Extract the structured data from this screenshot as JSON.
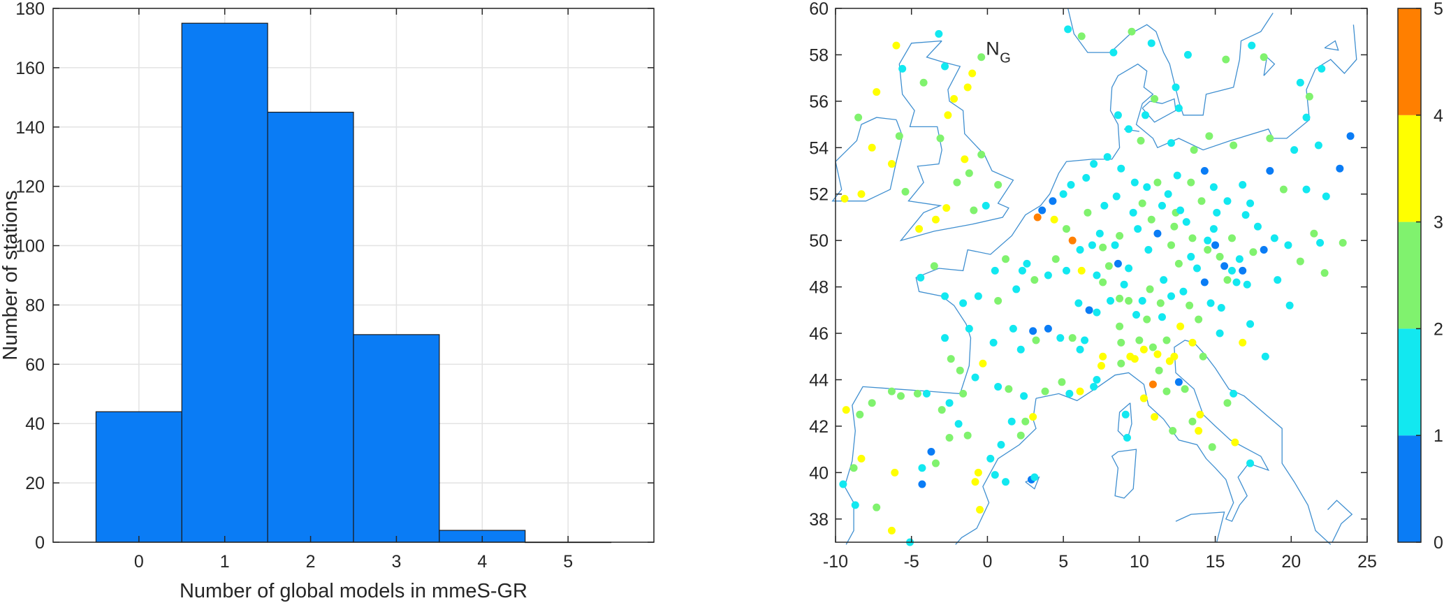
{
  "chart_data": [
    {
      "type": "bar",
      "categories": [
        "0",
        "1",
        "2",
        "3",
        "4",
        "5"
      ],
      "values": [
        44,
        175,
        145,
        70,
        4,
        0
      ],
      "xlabel": "Number of  global models in mmeS-GR",
      "ylabel": "Number of stations",
      "ylim": [
        0,
        180
      ],
      "xlim": [
        -1,
        6
      ],
      "yticks": [
        "0",
        "20",
        "40",
        "60",
        "80",
        "100",
        "120",
        "140",
        "160",
        "180"
      ],
      "xticks": [
        "0",
        "1",
        "2",
        "3",
        "4",
        "5"
      ],
      "grid": true,
      "bar_color": "#0a7cf5"
    },
    {
      "type": "scatter",
      "annotation": {
        "main": "N",
        "sub": "G"
      },
      "xlim": [
        -10,
        25
      ],
      "ylim": [
        37,
        60
      ],
      "xticks": [
        "-10",
        "-5",
        "0",
        "5",
        "10",
        "15",
        "20",
        "25"
      ],
      "yticks": [
        "38",
        "40",
        "42",
        "44",
        "46",
        "48",
        "50",
        "52",
        "54",
        "56",
        "58",
        "60"
      ],
      "colorbar": {
        "range": [
          0,
          5
        ],
        "ticks": [
          "0",
          "1",
          "2",
          "3",
          "4",
          "5"
        ],
        "colors": [
          "#0a7cf5",
          "#12e8f0",
          "#80f26e",
          "#ffff00",
          "#ff7f00"
        ]
      },
      "coastline_color": "#3f8fd0",
      "points": [
        [
          -5.1,
          37.0,
          1
        ],
        [
          -9.5,
          39.5,
          1
        ],
        [
          -9.3,
          42.7,
          3
        ],
        [
          -8.4,
          42.5,
          2
        ],
        [
          -8.8,
          40.2,
          2
        ],
        [
          -8.3,
          40.6,
          3
        ],
        [
          -8.7,
          38.6,
          1
        ],
        [
          -7.3,
          38.5,
          2
        ],
        [
          -6.3,
          37.5,
          3
        ],
        [
          -6.1,
          40.0,
          3
        ],
        [
          -4.3,
          39.5,
          0
        ],
        [
          -4.3,
          40.2,
          1
        ],
        [
          -3.7,
          40.9,
          0
        ],
        [
          -3.4,
          40.4,
          2
        ],
        [
          -3.0,
          42.7,
          2
        ],
        [
          -2.5,
          41.5,
          2
        ],
        [
          -1.9,
          42.1,
          1
        ],
        [
          -1.3,
          41.6,
          2
        ],
        [
          -0.8,
          39.6,
          3
        ],
        [
          -0.6,
          40.0,
          3
        ],
        [
          -0.5,
          38.4,
          3
        ],
        [
          0.2,
          40.6,
          1
        ],
        [
          0.5,
          39.9,
          1
        ],
        [
          0.9,
          41.2,
          1
        ],
        [
          1.6,
          42.2,
          1
        ],
        [
          2.2,
          41.6,
          2
        ],
        [
          2.5,
          42.2,
          2
        ],
        [
          3.0,
          42.4,
          3
        ],
        [
          1.2,
          39.6,
          1
        ],
        [
          2.9,
          39.7,
          0
        ],
        [
          3.1,
          39.8,
          1
        ],
        [
          -4.0,
          43.4,
          1
        ],
        [
          -4.6,
          43.4,
          2
        ],
        [
          -5.7,
          43.3,
          2
        ],
        [
          -6.3,
          43.5,
          2
        ],
        [
          -7.6,
          43.0,
          2
        ],
        [
          -2.5,
          43.0,
          1
        ],
        [
          -1.6,
          43.4,
          2
        ],
        [
          -0.3,
          44.7,
          3
        ],
        [
          0.7,
          43.7,
          1
        ],
        [
          1.4,
          43.6,
          2
        ],
        [
          2.4,
          43.3,
          1
        ],
        [
          3.8,
          43.5,
          2
        ],
        [
          4.9,
          43.9,
          2
        ],
        [
          5.4,
          43.4,
          1
        ],
        [
          6.1,
          43.5,
          3
        ],
        [
          7.0,
          43.7,
          1
        ],
        [
          7.5,
          44.6,
          3
        ],
        [
          8.8,
          44.7,
          2
        ],
        [
          9.4,
          45.0,
          3
        ],
        [
          10.3,
          45.3,
          3
        ],
        [
          10.9,
          45.4,
          2
        ],
        [
          11.2,
          45.1,
          3
        ],
        [
          11.8,
          45.7,
          2
        ],
        [
          12.3,
          45.0,
          3
        ],
        [
          12.7,
          46.3,
          3
        ],
        [
          13.5,
          45.6,
          3
        ],
        [
          11.3,
          44.4,
          2
        ],
        [
          10.9,
          43.8,
          4
        ],
        [
          10.3,
          43.2,
          3
        ],
        [
          11.8,
          43.5,
          2
        ],
        [
          12.6,
          43.9,
          0
        ],
        [
          13.5,
          42.2,
          2
        ],
        [
          13.9,
          41.8,
          3
        ],
        [
          11.0,
          42.4,
          3
        ],
        [
          12.2,
          41.8,
          2
        ],
        [
          14.8,
          41.1,
          2
        ],
        [
          16.3,
          41.3,
          3
        ],
        [
          17.3,
          40.4,
          1
        ],
        [
          9.1,
          42.5,
          1
        ],
        [
          9.2,
          41.5,
          1
        ],
        [
          7.2,
          44.0,
          1
        ],
        [
          6.1,
          45.3,
          1
        ],
        [
          5.6,
          45.8,
          2
        ],
        [
          4.8,
          45.8,
          1
        ],
        [
          4.0,
          46.2,
          0
        ],
        [
          3.2,
          45.7,
          2
        ],
        [
          1.7,
          46.2,
          1
        ],
        [
          0.4,
          45.6,
          1
        ],
        [
          -1.2,
          46.2,
          1
        ],
        [
          -1.6,
          47.3,
          1
        ],
        [
          -2.8,
          47.6,
          1
        ],
        [
          -4.4,
          48.4,
          1
        ],
        [
          -3.5,
          48.9,
          2
        ],
        [
          -0.6,
          47.6,
          1
        ],
        [
          0.7,
          47.4,
          2
        ],
        [
          1.9,
          47.9,
          1
        ],
        [
          2.3,
          48.7,
          1
        ],
        [
          2.6,
          49.0,
          1
        ],
        [
          1.2,
          49.2,
          2
        ],
        [
          3.1,
          48.3,
          2
        ],
        [
          4.0,
          48.5,
          1
        ],
        [
          4.5,
          49.2,
          2
        ],
        [
          5.2,
          48.7,
          1
        ],
        [
          6.2,
          48.7,
          3
        ],
        [
          7.2,
          48.5,
          1
        ],
        [
          7.6,
          48.2,
          2
        ],
        [
          6.0,
          47.3,
          1
        ],
        [
          6.7,
          47.0,
          0
        ],
        [
          7.2,
          46.9,
          1
        ],
        [
          8.1,
          47.4,
          1
        ],
        [
          8.7,
          47.5,
          2
        ],
        [
          9.3,
          47.4,
          2
        ],
        [
          9.8,
          46.8,
          1
        ],
        [
          8.7,
          46.3,
          2
        ],
        [
          10.2,
          47.4,
          1
        ],
        [
          11.4,
          47.3,
          2
        ],
        [
          12.1,
          47.6,
          1
        ],
        [
          12.9,
          47.8,
          1
        ],
        [
          13.3,
          47.2,
          2
        ],
        [
          14.3,
          48.2,
          0
        ],
        [
          14.7,
          47.3,
          1
        ],
        [
          15.4,
          47.1,
          1
        ],
        [
          16.4,
          48.2,
          1
        ],
        [
          15.8,
          48.3,
          2
        ],
        [
          16.1,
          48.7,
          1
        ],
        [
          17.1,
          48.1,
          1
        ],
        [
          16.6,
          49.2,
          1
        ],
        [
          17.5,
          49.5,
          2
        ],
        [
          18.2,
          49.6,
          0
        ],
        [
          15.0,
          49.8,
          0
        ],
        [
          14.5,
          50.0,
          1
        ],
        [
          13.5,
          50.1,
          2
        ],
        [
          14.9,
          50.5,
          1
        ],
        [
          13.1,
          50.8,
          1
        ],
        [
          12.4,
          51.2,
          2
        ],
        [
          11.5,
          51.5,
          1
        ],
        [
          10.8,
          50.9,
          2
        ],
        [
          9.9,
          50.5,
          1
        ],
        [
          8.7,
          50.2,
          2
        ],
        [
          8.4,
          49.8,
          1
        ],
        [
          8.6,
          49.0,
          0
        ],
        [
          7.6,
          49.7,
          2
        ],
        [
          6.9,
          49.8,
          1
        ],
        [
          6.1,
          49.6,
          1
        ],
        [
          5.6,
          50.0,
          4
        ],
        [
          5.2,
          50.5,
          2
        ],
        [
          4.4,
          50.9,
          3
        ],
        [
          3.3,
          51.0,
          4
        ],
        [
          3.6,
          51.3,
          0
        ],
        [
          4.3,
          51.7,
          0
        ],
        [
          5.0,
          52.0,
          1
        ],
        [
          5.5,
          52.4,
          1
        ],
        [
          6.5,
          52.7,
          1
        ],
        [
          7.0,
          53.3,
          1
        ],
        [
          7.9,
          53.6,
          1
        ],
        [
          8.8,
          53.1,
          1
        ],
        [
          9.7,
          52.5,
          1
        ],
        [
          10.5,
          52.3,
          1
        ],
        [
          11.2,
          52.5,
          2
        ],
        [
          11.9,
          52.0,
          1
        ],
        [
          12.5,
          52.8,
          1
        ],
        [
          13.4,
          52.5,
          2
        ],
        [
          14.3,
          53.0,
          0
        ],
        [
          13.6,
          53.9,
          2
        ],
        [
          12.1,
          54.2,
          1
        ],
        [
          10.1,
          54.3,
          2
        ],
        [
          9.3,
          54.8,
          1
        ],
        [
          8.6,
          55.4,
          1
        ],
        [
          10.4,
          55.4,
          1
        ],
        [
          12.6,
          55.7,
          1
        ],
        [
          14.6,
          54.5,
          2
        ],
        [
          16.2,
          54.1,
          2
        ],
        [
          18.6,
          54.4,
          2
        ],
        [
          19.5,
          52.2,
          2
        ],
        [
          21.0,
          52.2,
          1
        ],
        [
          17.0,
          51.1,
          1
        ],
        [
          15.1,
          51.2,
          1
        ],
        [
          16.8,
          52.4,
          1
        ],
        [
          18.6,
          53.0,
          0
        ],
        [
          20.2,
          53.9,
          1
        ],
        [
          23.2,
          53.1,
          0
        ],
        [
          23.9,
          54.5,
          0
        ],
        [
          21.9,
          49.9,
          1
        ],
        [
          20.6,
          49.1,
          2
        ],
        [
          19.1,
          48.3,
          1
        ],
        [
          19.9,
          47.2,
          1
        ],
        [
          22.2,
          48.6,
          2
        ],
        [
          23.4,
          49.9,
          2
        ],
        [
          21.5,
          50.3,
          2
        ],
        [
          22.3,
          51.9,
          1
        ],
        [
          21.8,
          54.1,
          1
        ],
        [
          21.0,
          55.3,
          1
        ],
        [
          21.2,
          56.2,
          2
        ],
        [
          20.6,
          56.8,
          1
        ],
        [
          22.0,
          57.4,
          1
        ],
        [
          17.4,
          58.4,
          1
        ],
        [
          13.2,
          58.0,
          1
        ],
        [
          15.7,
          57.8,
          2
        ],
        [
          18.2,
          57.9,
          2
        ],
        [
          12.4,
          56.6,
          1
        ],
        [
          11.0,
          56.1,
          2
        ],
        [
          9.5,
          59.0,
          2
        ],
        [
          10.8,
          58.5,
          1
        ],
        [
          8.3,
          58.1,
          1
        ],
        [
          5.3,
          59.1,
          1
        ],
        [
          6.2,
          58.8,
          2
        ],
        [
          -1.3,
          56.6,
          3
        ],
        [
          -2.2,
          56.1,
          3
        ],
        [
          -2.6,
          55.4,
          3
        ],
        [
          -3.1,
          54.4,
          2
        ],
        [
          -1.5,
          53.5,
          3
        ],
        [
          -0.4,
          53.7,
          2
        ],
        [
          -2.0,
          52.5,
          2
        ],
        [
          -1.2,
          52.9,
          2
        ],
        [
          -0.1,
          51.5,
          1
        ],
        [
          0.7,
          52.4,
          2
        ],
        [
          -0.9,
          51.3,
          2
        ],
        [
          -2.7,
          51.4,
          3
        ],
        [
          -3.4,
          50.9,
          3
        ],
        [
          -4.5,
          50.5,
          3
        ],
        [
          -5.4,
          52.1,
          2
        ],
        [
          -6.3,
          53.3,
          3
        ],
        [
          -7.6,
          54.0,
          3
        ],
        [
          -8.3,
          52.0,
          3
        ],
        [
          -9.4,
          51.8,
          3
        ],
        [
          -5.8,
          54.5,
          2
        ],
        [
          -8.5,
          55.3,
          2
        ],
        [
          -7.3,
          56.4,
          3
        ],
        [
          -5.6,
          57.4,
          1
        ],
        [
          -4.2,
          56.8,
          2
        ],
        [
          -6.0,
          58.4,
          3
        ],
        [
          -3.2,
          58.9,
          1
        ],
        [
          -1.0,
          57.2,
          3
        ],
        [
          -0.4,
          57.9,
          2
        ],
        [
          -2.8,
          57.5,
          1
        ],
        [
          0.5,
          48.7,
          1
        ],
        [
          3.0,
          46.1,
          0
        ],
        [
          2.2,
          45.3,
          1
        ],
        [
          -1.8,
          44.4,
          2
        ],
        [
          -0.8,
          44.1,
          1
        ],
        [
          -2.4,
          44.9,
          2
        ],
        [
          -2.8,
          45.8,
          1
        ],
        [
          10.0,
          45.7,
          2
        ],
        [
          8.8,
          45.6,
          2
        ],
        [
          9.7,
          44.9,
          3
        ],
        [
          12.0,
          44.8,
          3
        ],
        [
          13.0,
          43.6,
          2
        ],
        [
          14.0,
          42.5,
          3
        ],
        [
          16.2,
          43.4,
          1
        ],
        [
          15.8,
          43.0,
          2
        ],
        [
          7.6,
          45.0,
          3
        ],
        [
          6.4,
          45.7,
          1
        ],
        [
          11.5,
          46.7,
          1
        ],
        [
          10.5,
          46.6,
          2
        ],
        [
          13.9,
          46.6,
          2
        ],
        [
          15.3,
          46.0,
          1
        ],
        [
          17.3,
          46.4,
          1
        ],
        [
          16.8,
          45.6,
          3
        ],
        [
          18.3,
          45.0,
          1
        ],
        [
          14.2,
          45.0,
          2
        ],
        [
          10.7,
          47.9,
          2
        ],
        [
          9.3,
          48.8,
          1
        ],
        [
          11.6,
          48.3,
          1
        ],
        [
          12.6,
          49.0,
          2
        ],
        [
          13.8,
          48.8,
          1
        ],
        [
          15.3,
          49.3,
          2
        ],
        [
          10.6,
          49.6,
          1
        ],
        [
          11.2,
          50.3,
          0
        ],
        [
          12.3,
          50.6,
          2
        ],
        [
          7.4,
          50.3,
          1
        ],
        [
          6.6,
          51.2,
          2
        ],
        [
          7.7,
          51.5,
          1
        ],
        [
          8.5,
          51.9,
          1
        ],
        [
          9.6,
          51.2,
          1
        ],
        [
          10.2,
          51.6,
          2
        ],
        [
          12.7,
          51.3,
          1
        ],
        [
          14.1,
          51.7,
          2
        ],
        [
          14.9,
          52.3,
          1
        ],
        [
          15.8,
          51.7,
          1
        ],
        [
          17.3,
          51.6,
          1
        ],
        [
          16.1,
          50.1,
          2
        ],
        [
          17.8,
          50.6,
          1
        ],
        [
          18.9,
          50.1,
          1
        ],
        [
          19.8,
          49.8,
          1
        ],
        [
          16.8,
          48.7,
          0
        ],
        [
          15.6,
          48.9,
          0
        ],
        [
          14.5,
          49.6,
          2
        ],
        [
          13.4,
          49.3,
          1
        ],
        [
          12.1,
          49.8,
          2
        ],
        [
          9.0,
          48.1,
          1
        ],
        [
          8.0,
          48.9,
          2
        ]
      ]
    }
  ]
}
